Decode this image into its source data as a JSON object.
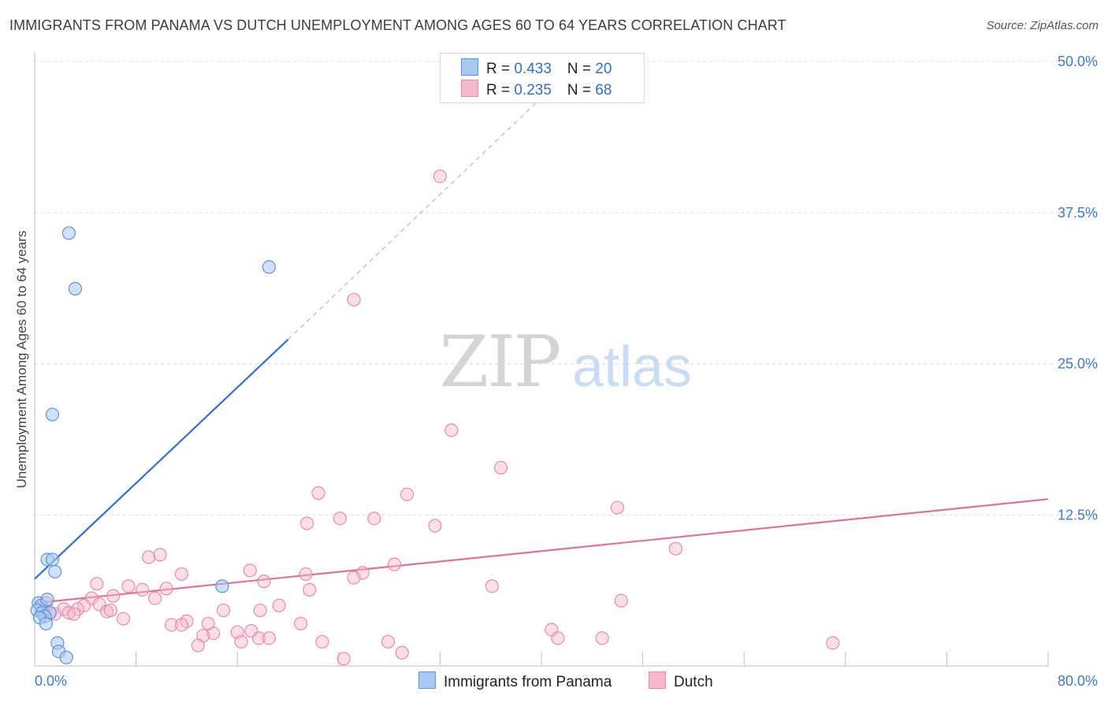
{
  "title": "IMMIGRANTS FROM PANAMA VS DUTCH UNEMPLOYMENT AMONG AGES 60 TO 64 YEARS CORRELATION CHART",
  "source": "Source: ZipAtlas.com",
  "watermark": {
    "zip": "ZIP",
    "atlas": "atlas"
  },
  "legend": {
    "rows": [
      {
        "r_label": "R = ",
        "r_value": "0.433",
        "n_label": "N = ",
        "n_value": "20"
      },
      {
        "r_label": "R = ",
        "r_value": "0.235",
        "n_label": "N = ",
        "n_value": "68"
      }
    ]
  },
  "colors": {
    "panama_fill": "#a9c8f0",
    "panama_stroke": "#5b93d8",
    "panama_line": "#2e6fcf",
    "dutch_fill": "#f5b8cb",
    "dutch_stroke": "#e889a8",
    "dutch_line": "#e0709a",
    "axis_text": "#3f78c9",
    "grid": "#d9d9d9"
  },
  "chart_data": {
    "type": "scatter",
    "title": "IMMIGRANTS FROM PANAMA VS DUTCH UNEMPLOYMENT AMONG AGES 60 TO 64 YEARS CORRELATION CHART",
    "xlabel": "",
    "ylabel": "Unemployment Among Ages 60 to 64 years",
    "xlim": [
      0,
      80
    ],
    "ylim": [
      0,
      50
    ],
    "x_tick_labels": [
      "0.0%",
      "80.0%"
    ],
    "y_ticks": [
      12.5,
      25.0,
      37.5,
      50.0
    ],
    "y_tick_labels": [
      "12.5%",
      "25.0%",
      "37.5%",
      "50.0%"
    ],
    "grid": true,
    "legend_position": "top-center",
    "series": [
      {
        "name": "Immigrants from Panama",
        "R": 0.433,
        "N": 20,
        "trend": {
          "x": [
            0,
            20
          ],
          "y": [
            7.2,
            27.0
          ],
          "dashed_extension_to": [
            43,
            50
          ]
        },
        "points": [
          [
            2.7,
            35.8
          ],
          [
            3.2,
            31.2
          ],
          [
            18.5,
            33.0
          ],
          [
            1.4,
            20.8
          ],
          [
            1.0,
            8.8
          ],
          [
            1.4,
            8.8
          ],
          [
            1.6,
            7.8
          ],
          [
            14.8,
            6.6
          ],
          [
            0.3,
            5.2
          ],
          [
            0.5,
            5.0
          ],
          [
            1.0,
            5.5
          ],
          [
            0.2,
            4.6
          ],
          [
            0.6,
            4.4
          ],
          [
            1.2,
            4.4
          ],
          [
            0.8,
            4.1
          ],
          [
            0.4,
            4.0
          ],
          [
            0.9,
            3.5
          ],
          [
            1.8,
            1.9
          ],
          [
            1.9,
            1.2
          ],
          [
            2.5,
            0.7
          ]
        ]
      },
      {
        "name": "Dutch",
        "R": 0.235,
        "N": 68,
        "trend": {
          "x": [
            0,
            80
          ],
          "y": [
            5.2,
            13.8
          ]
        },
        "points": [
          [
            32.0,
            40.5
          ],
          [
            25.2,
            30.3
          ],
          [
            32.9,
            19.5
          ],
          [
            36.8,
            16.4
          ],
          [
            22.4,
            14.3
          ],
          [
            29.4,
            14.2
          ],
          [
            46.0,
            13.1
          ],
          [
            21.5,
            11.8
          ],
          [
            24.1,
            12.2
          ],
          [
            26.8,
            12.2
          ],
          [
            31.6,
            11.6
          ],
          [
            50.6,
            9.7
          ],
          [
            9.0,
            9.0
          ],
          [
            9.9,
            9.2
          ],
          [
            28.4,
            8.4
          ],
          [
            17.0,
            7.9
          ],
          [
            11.6,
            7.6
          ],
          [
            21.4,
            7.6
          ],
          [
            25.9,
            7.7
          ],
          [
            18.1,
            7.0
          ],
          [
            25.2,
            7.3
          ],
          [
            4.9,
            6.8
          ],
          [
            7.4,
            6.6
          ],
          [
            8.5,
            6.3
          ],
          [
            10.4,
            6.4
          ],
          [
            36.1,
            6.6
          ],
          [
            21.7,
            6.3
          ],
          [
            6.2,
            5.8
          ],
          [
            9.5,
            5.6
          ],
          [
            4.5,
            5.6
          ],
          [
            3.9,
            5.0
          ],
          [
            5.1,
            5.1
          ],
          [
            46.3,
            5.4
          ],
          [
            19.3,
            5.0
          ],
          [
            14.9,
            4.6
          ],
          [
            17.8,
            4.6
          ],
          [
            2.3,
            4.7
          ],
          [
            3.4,
            4.7
          ],
          [
            2.7,
            4.4
          ],
          [
            3.1,
            4.3
          ],
          [
            1.6,
            4.3
          ],
          [
            5.7,
            4.5
          ],
          [
            6.0,
            4.6
          ],
          [
            1.2,
            4.4
          ],
          [
            0.6,
            4.6
          ],
          [
            0.9,
            5.2
          ],
          [
            7.0,
            3.9
          ],
          [
            12.0,
            3.7
          ],
          [
            10.8,
            3.4
          ],
          [
            11.6,
            3.4
          ],
          [
            13.7,
            3.5
          ],
          [
            21.0,
            3.5
          ],
          [
            14.1,
            2.7
          ],
          [
            13.3,
            2.5
          ],
          [
            16.0,
            2.8
          ],
          [
            17.1,
            2.9
          ],
          [
            17.7,
            2.3
          ],
          [
            18.5,
            2.3
          ],
          [
            16.3,
            2.0
          ],
          [
            12.9,
            1.7
          ],
          [
            22.7,
            2.0
          ],
          [
            27.9,
            2.0
          ],
          [
            40.8,
            3.0
          ],
          [
            41.3,
            2.3
          ],
          [
            44.8,
            2.3
          ],
          [
            63.0,
            1.9
          ],
          [
            24.4,
            0.6
          ],
          [
            29.0,
            1.1
          ]
        ]
      }
    ]
  },
  "bottom_legend": {
    "panama_label": "Immigrants from Panama",
    "dutch_label": "Dutch"
  }
}
